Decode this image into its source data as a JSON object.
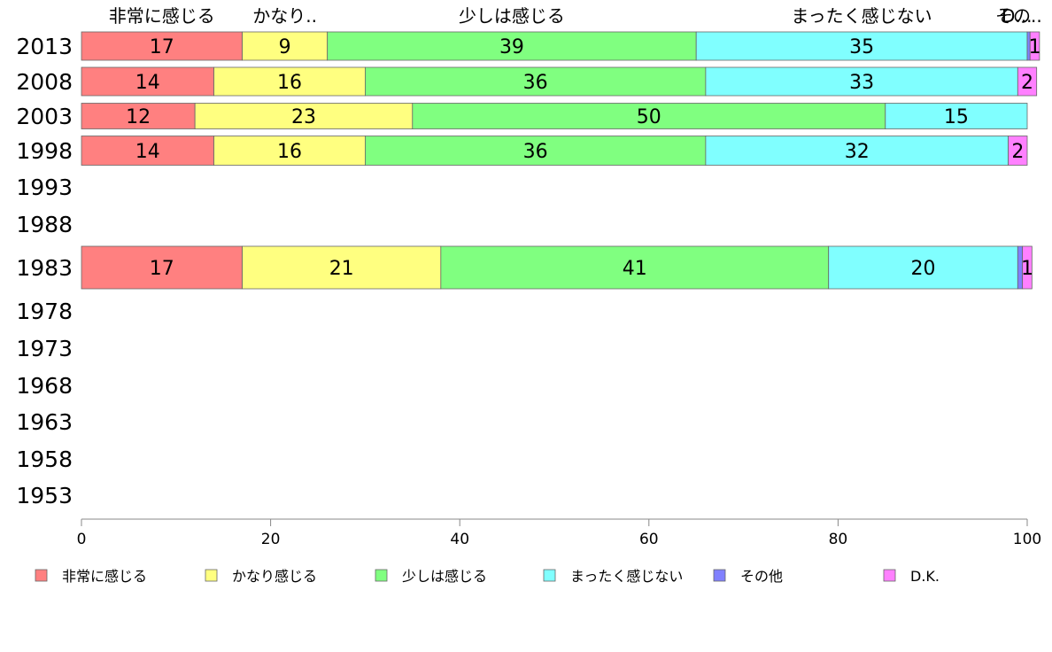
{
  "chart_data": {
    "type": "bar",
    "orientation": "horizontal",
    "stacked": true,
    "categories": [
      "2013",
      "2008",
      "2003",
      "1998",
      "1993",
      "1988",
      "1983",
      "1978",
      "1973",
      "1968",
      "1963",
      "1958",
      "1953"
    ],
    "series": [
      {
        "name": "非常に感じる",
        "color": "#ff8080",
        "values": [
          17,
          14,
          12,
          14,
          null,
          null,
          17,
          null,
          null,
          null,
          null,
          null,
          null
        ]
      },
      {
        "name": "かなり感じる",
        "color": "#ffff80",
        "values": [
          9,
          16,
          23,
          16,
          null,
          null,
          21,
          null,
          null,
          null,
          null,
          null,
          null
        ]
      },
      {
        "name": "少しは感じる",
        "color": "#80ff80",
        "values": [
          39,
          36,
          50,
          36,
          null,
          null,
          41,
          null,
          null,
          null,
          null,
          null,
          null
        ]
      },
      {
        "name": "まったく感じない",
        "color": "#80ffff",
        "values": [
          35,
          33,
          15,
          32,
          null,
          null,
          20,
          null,
          null,
          null,
          null,
          null,
          null
        ]
      },
      {
        "name": "その他",
        "color": "#8080ff",
        "values": [
          0.3,
          0,
          0,
          0,
          null,
          null,
          0.5,
          null,
          null,
          null,
          null,
          null,
          null
        ]
      },
      {
        "name": "D.K.",
        "color": "#ff80ff",
        "values": [
          1,
          2,
          0,
          2,
          null,
          null,
          1,
          null,
          null,
          null,
          null,
          null,
          null
        ]
      }
    ],
    "top_labels": [
      "非常に感じる",
      "かなり..",
      "少しは感じる",
      "まったく感じない",
      "その..",
      "D..."
    ],
    "xlim": [
      0,
      100
    ],
    "x_ticks": [
      0,
      20,
      40,
      60,
      80,
      100
    ],
    "grid": false,
    "legend_position": "bottom"
  }
}
